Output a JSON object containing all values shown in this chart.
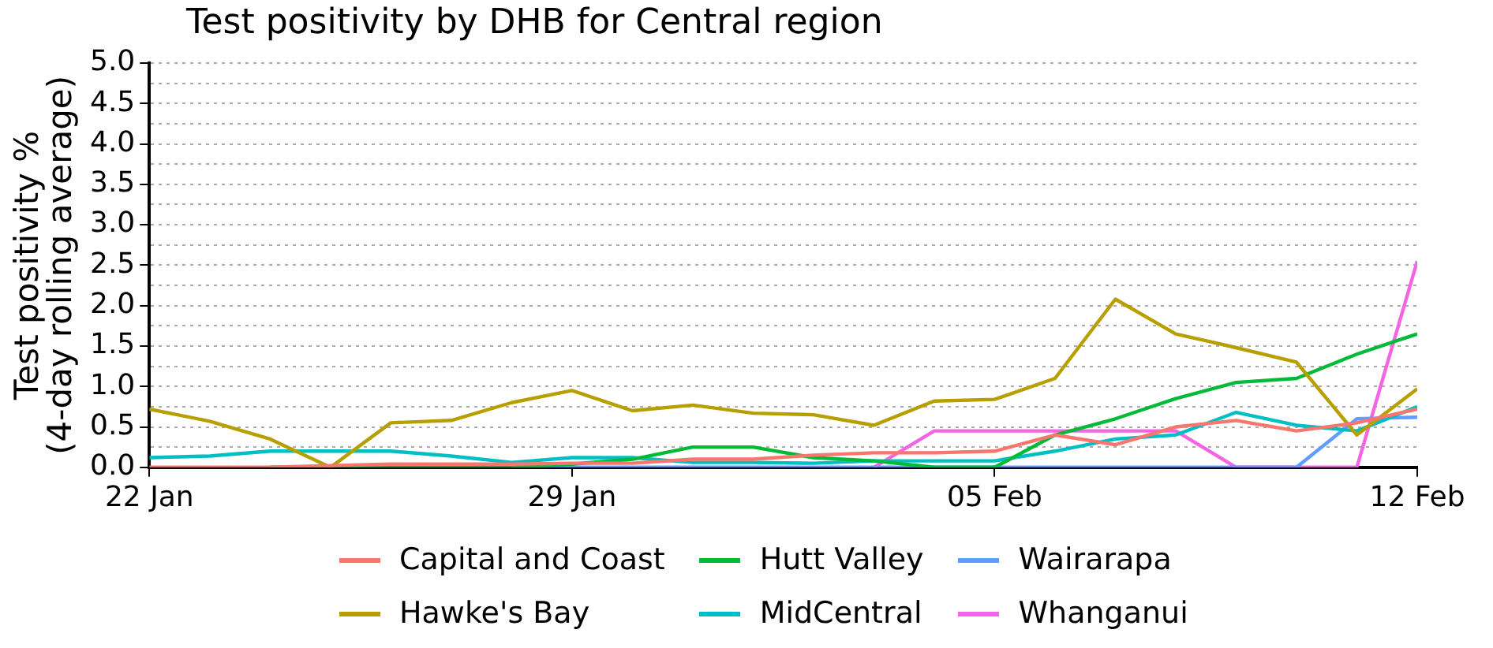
{
  "chart_data": {
    "type": "line",
    "title": "Test positivity by DHB for Central region",
    "ylabel": "Test positivity %\n(4-day rolling average)",
    "x": [
      "--01-22",
      "--01-23",
      "--01-24",
      "--01-25",
      "--01-26",
      "--01-27",
      "--01-28",
      "--01-29",
      "--01-30",
      "--01-31",
      "--02-01",
      "--02-02",
      "--02-03",
      "--02-04",
      "--02-05",
      "--02-06",
      "--02-07",
      "--02-08",
      "--02-09",
      "--02-10",
      "--02-11",
      "--02-12"
    ],
    "series": [
      {
        "name": "Capital and Coast",
        "color": "#f8766d",
        "values": [
          0,
          0,
          0,
          0.02,
          0.04,
          0.04,
          0.04,
          0.05,
          0.05,
          0.1,
          0.1,
          0.15,
          0.18,
          0.18,
          0.2,
          0.4,
          0.28,
          0.5,
          0.58,
          0.45,
          0.55,
          0.72
        ]
      },
      {
        "name": "Hawke's Bay",
        "color": "#b79f00",
        "values": [
          0.72,
          0.57,
          0.35,
          0,
          0.55,
          0.58,
          0.8,
          0.95,
          0.7,
          0.77,
          0.67,
          0.65,
          0.52,
          0.82,
          0.84,
          1.1,
          2.08,
          1.65,
          1.48,
          1.3,
          0.4,
          0.97
        ]
      },
      {
        "name": "Hutt Valley",
        "color": "#00ba38",
        "values": [
          null,
          null,
          0,
          0,
          0,
          0,
          0,
          0.04,
          0.1,
          0.25,
          0.25,
          0.12,
          0.08,
          0,
          0,
          0.4,
          0.6,
          0.85,
          1.05,
          1.1,
          1.4,
          1.65
        ]
      },
      {
        "name": "MidCentral",
        "color": "#00bfc4",
        "values": [
          0.12,
          0.14,
          0.2,
          0.2,
          0.2,
          0.14,
          0.06,
          0.12,
          0.12,
          0.06,
          0.06,
          0.05,
          0.08,
          0.08,
          0.08,
          0.2,
          0.35,
          0.4,
          0.68,
          0.52,
          0.45,
          0.75
        ]
      },
      {
        "name": "Wairarapa",
        "color": "#619cff",
        "values": [
          null,
          null,
          null,
          null,
          null,
          null,
          0,
          0,
          0,
          0,
          0,
          0,
          0,
          0,
          0,
          0,
          0,
          0,
          0,
          0,
          0.6,
          0.62
        ]
      },
      {
        "name": "Whanganui",
        "color": "#f564e3",
        "values": [
          null,
          null,
          null,
          null,
          null,
          null,
          null,
          null,
          null,
          null,
          null,
          null,
          0,
          0.45,
          0.45,
          0.45,
          0.45,
          0.45,
          0,
          0,
          0,
          2.55
        ]
      }
    ],
    "xlim": [
      "--01-22",
      "--02-12"
    ],
    "xticks": [
      {
        "value": "--01-22",
        "label": "22 Jan"
      },
      {
        "value": "--01-29",
        "label": "29 Jan"
      },
      {
        "value": "--02-05",
        "label": "05 Feb"
      },
      {
        "value": "--02-12",
        "label": "12 Feb"
      }
    ],
    "ylim": [
      0,
      5
    ],
    "yticks": [
      {
        "value": 0,
        "label": "0.0"
      },
      {
        "value": 0.25,
        "label": null
      },
      {
        "value": 0.5,
        "label": "0.5"
      },
      {
        "value": 0.75,
        "label": null
      },
      {
        "value": 1,
        "label": "1.0"
      },
      {
        "value": 1.25,
        "label": null
      },
      {
        "value": 1.5,
        "label": "1.5"
      },
      {
        "value": 1.75,
        "label": null
      },
      {
        "value": 2,
        "label": "2.0"
      },
      {
        "value": 2.25,
        "label": null
      },
      {
        "value": 2.5,
        "label": "2.5"
      },
      {
        "value": 2.75,
        "label": null
      },
      {
        "value": 3,
        "label": "3.0"
      },
      {
        "value": 3.25,
        "label": null
      },
      {
        "value": 3.5,
        "label": "3.5"
      },
      {
        "value": 3.75,
        "label": null
      },
      {
        "value": 4,
        "label": "4.0"
      },
      {
        "value": 4.25,
        "label": null
      },
      {
        "value": 4.5,
        "label": "4.5"
      },
      {
        "value": 4.75,
        "label": null
      },
      {
        "value": 5,
        "label": "5.0"
      }
    ],
    "grid": "y",
    "legend": "bottom",
    "marker": "none",
    "line_style": "solid"
  }
}
